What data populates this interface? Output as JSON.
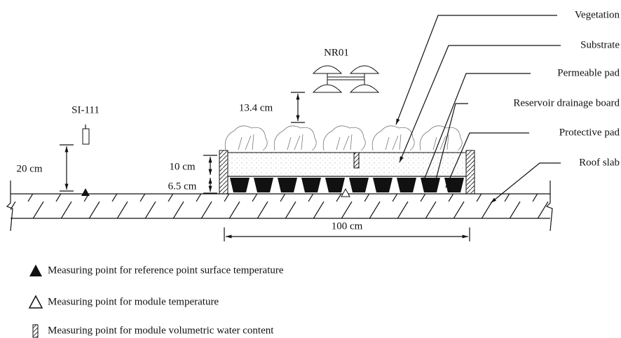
{
  "sensors": {
    "radiometer": "NR01",
    "infrared": "SI-111"
  },
  "dimensions": {
    "radiometer_height": "13.4 cm",
    "infrared_height": "20 cm",
    "substrate": "10 cm",
    "drainage": "6.5 cm",
    "module_width": "100 cm"
  },
  "layers": [
    "Vegetation",
    "Substrate",
    "Permeable pad",
    "Reservoir drainage board",
    "Protective pad",
    "Roof slab"
  ],
  "legend": [
    "Measuring point for reference point surface temperature",
    "Measuring point for module temperature",
    "Measuring point for module volumetric water content"
  ]
}
